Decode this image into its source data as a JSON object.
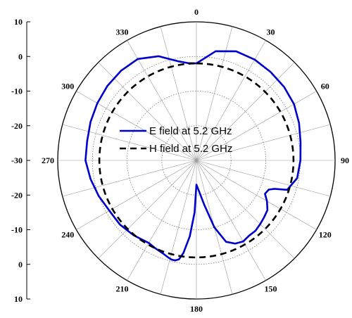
{
  "chart_data": {
    "type": "line",
    "subtype": "polar",
    "grid": true,
    "legend_position": "center",
    "r_range": [
      -30,
      10
    ],
    "r_ticks": [
      10,
      0,
      -10,
      -20,
      -30
    ],
    "r_tick_labels": [
      "10",
      "0",
      "-10",
      "-20",
      "-30",
      "-20",
      "-10",
      "0",
      "10"
    ],
    "angle_ticks": [
      0,
      30,
      60,
      90,
      120,
      150,
      180,
      210,
      240,
      270,
      300,
      330
    ],
    "angle_tick_labels": [
      "0",
      "30",
      "60",
      "90",
      "120",
      "150",
      "180",
      "210",
      "240",
      "270",
      "300",
      "330"
    ],
    "series": [
      {
        "name": "E field at 5.2 GHz",
        "color": "#0000cc",
        "style": "solid",
        "theta": [
          0,
          10,
          20,
          30,
          40,
          50,
          60,
          70,
          80,
          90,
          100,
          108,
          110,
          112,
          116,
          120,
          125,
          130,
          135,
          140,
          145,
          150,
          155,
          160,
          165,
          170,
          175,
          180,
          182,
          185,
          188,
          190,
          192,
          194,
          196,
          200,
          205,
          210,
          220,
          230,
          240,
          250,
          260,
          270,
          280,
          290,
          300,
          310,
          320,
          330,
          340,
          350,
          355,
          360
        ],
        "r": [
          -2,
          2,
          3.5,
          3.6,
          3.3,
          3,
          2.5,
          1.5,
          0.5,
          0,
          -0.5,
          -2.5,
          -6,
          -7.5,
          -8,
          -6.5,
          -5,
          -4.5,
          -4,
          -3.5,
          -3.5,
          -3,
          -3.5,
          -5,
          -10,
          -17,
          -21,
          -23,
          -15,
          -8,
          -3,
          -1,
          -0.5,
          -0.5,
          -0.8,
          -1.5,
          -2,
          -2.5,
          -1.8,
          -1.2,
          -1,
          0,
          1,
          2,
          2,
          2.5,
          3,
          3.5,
          3.8,
          3.8,
          2,
          -1,
          -1.8,
          -2
        ]
      },
      {
        "name": "H field at 5.2 GHz",
        "color": "#000000",
        "style": "dashed",
        "theta": [
          0,
          360
        ],
        "r": [
          -2,
          -2
        ]
      }
    ]
  }
}
